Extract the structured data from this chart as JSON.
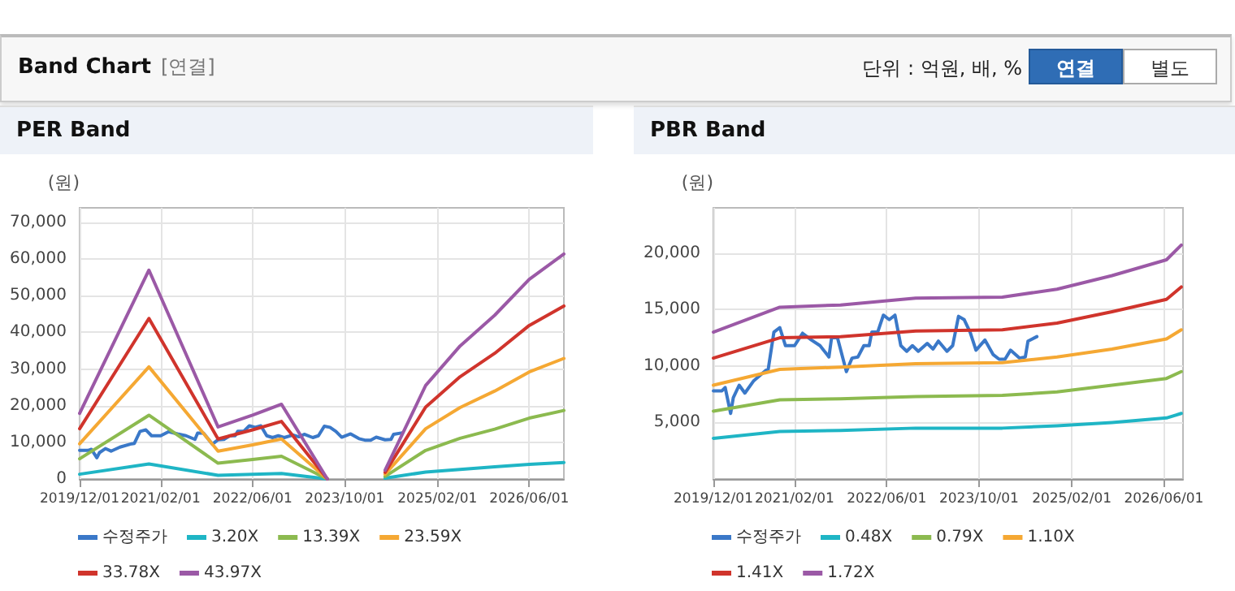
{
  "chart_data": [
    {
      "type": "other",
      "title": "Band Chart",
      "subtitle": "[연결]",
      "annotations": [
        "단위 : 억원, 배, %",
        "연결",
        "별도"
      ]
    },
    {
      "type": "line",
      "title": "PER Band",
      "ylabel": "(원)",
      "legend": "bottom",
      "grid": true,
      "marker": "none",
      "line_style": "solid",
      "xlim": [
        "2019-12-01",
        "2026-12-01"
      ],
      "ylim": [
        0,
        74000
      ],
      "yticks": [
        0,
        {
          "value": 10000,
          "label": "10,000"
        },
        {
          "value": 20000,
          "label": "20,000"
        },
        {
          "value": 30000,
          "label": "30,000"
        },
        {
          "value": 40000,
          "label": "40,000"
        },
        {
          "value": 50000,
          "label": "50,000"
        },
        {
          "value": 60000,
          "label": "60,000"
        },
        {
          "value": 70000,
          "label": "70,000"
        }
      ],
      "xticks": [
        {
          "value": "2019-12-01",
          "label": "2019/12/01"
        },
        {
          "value": "2021-02-01",
          "label": "2021/02/01"
        },
        {
          "value": "2022-06-01",
          "label": "2022/06/01"
        },
        {
          "value": "2023-10-01",
          "label": "2023/10/01"
        },
        {
          "value": "2025-02-01",
          "label": "2025/02/01"
        },
        {
          "value": "2026-06-01",
          "label": "2026/06/01"
        }
      ],
      "series": [
        {
          "name": "수정주가",
          "color": "#3a78c8",
          "x": [
            "2019-12-01",
            "2020-01-15",
            "2020-02-01",
            "2020-03-01",
            "2020-03-15",
            "2020-04-15",
            "2020-05-15",
            "2020-07-01",
            "2020-09-01",
            "2020-09-15",
            "2020-10-15",
            "2020-11-15",
            "2020-12-15",
            "2021-02-01",
            "2021-03-15",
            "2021-05-01",
            "2021-06-15",
            "2021-08-01",
            "2021-08-15",
            "2021-09-15",
            "2021-11-01",
            "2021-12-01",
            "2022-01-01",
            "2022-02-01",
            "2022-03-01",
            "2022-03-15",
            "2022-04-15",
            "2022-05-15",
            "2022-06-15",
            "2022-07-15",
            "2022-08-15",
            "2022-09-15",
            "2022-10-15",
            "2022-11-15",
            "2023-01-01",
            "2023-02-01",
            "2023-03-01",
            "2023-04-15",
            "2023-05-15",
            "2023-06-15",
            "2023-07-15",
            "2023-08-15",
            "2023-09-15",
            "2023-11-01",
            "2023-12-15",
            "2024-01-15",
            "2024-02-15",
            "2024-03-15",
            "2024-05-01",
            "2024-06-01",
            "2024-06-15",
            "2024-08-01"
          ],
          "values": [
            7800,
            7800,
            8100,
            5800,
            7200,
            8300,
            7600,
            8700,
            9600,
            9700,
            13000,
            13400,
            11800,
            11800,
            12900,
            12300,
            11800,
            10800,
            12500,
            12500,
            9500,
            10700,
            10800,
            11800,
            11800,
            13000,
            13000,
            14500,
            14100,
            14500,
            11800,
            11300,
            11800,
            11300,
            12000,
            11500,
            12200,
            11300,
            11800,
            14400,
            14100,
            13000,
            11400,
            12300,
            11000,
            10600,
            10600,
            11400,
            10700,
            10800,
            12200,
            12600
          ]
        },
        {
          "name": "3.20X",
          "color": "#1fb5c5",
          "x": [
            "2019-12-01",
            "2020-12-01",
            "2021-12-01",
            "2022-06-01",
            "2022-11-01",
            "2023-07-01",
            "2024-01-01",
            "2024-05-01",
            "2024-12-01",
            "2025-06-01",
            "2025-12-01",
            "2026-06-01",
            "2026-12-01"
          ],
          "values": [
            1300,
            4100,
            1000,
            1300,
            1500,
            0,
            null,
            200,
            1900,
            2600,
            3300,
            4000,
            4500
          ]
        },
        {
          "name": "13.39X",
          "color": "#8cba4f",
          "x": [
            "2019-12-01",
            "2020-12-01",
            "2021-12-01",
            "2022-06-01",
            "2022-11-01",
            "2023-07-01",
            "2024-01-01",
            "2024-05-01",
            "2024-12-01",
            "2025-06-01",
            "2025-12-01",
            "2026-06-01",
            "2026-12-01"
          ],
          "values": [
            5500,
            17400,
            4300,
            5300,
            6200,
            0,
            null,
            700,
            7800,
            11100,
            13600,
            16600,
            18700
          ]
        },
        {
          "name": "23.59X",
          "color": "#f5a833",
          "x": [
            "2019-12-01",
            "2020-12-01",
            "2021-12-01",
            "2022-06-01",
            "2022-11-01",
            "2023-07-01",
            "2024-01-01",
            "2024-05-01",
            "2024-12-01",
            "2025-06-01",
            "2025-12-01",
            "2026-06-01",
            "2026-12-01"
          ],
          "values": [
            9600,
            30600,
            7600,
            9300,
            10900,
            0,
            null,
            1300,
            13700,
            19500,
            24000,
            29200,
            32900
          ]
        },
        {
          "name": "33.78X",
          "color": "#d0342c",
          "x": [
            "2019-12-01",
            "2020-12-01",
            "2021-12-01",
            "2022-06-01",
            "2022-11-01",
            "2023-07-01",
            "2024-01-01",
            "2024-05-01",
            "2024-12-01",
            "2025-06-01",
            "2025-12-01",
            "2026-06-01",
            "2026-12-01"
          ],
          "values": [
            13700,
            43800,
            10900,
            13400,
            15700,
            0,
            null,
            1800,
            19600,
            27900,
            34300,
            41900,
            47200
          ]
        },
        {
          "name": "43.97X",
          "color": "#9b59a6",
          "x": [
            "2019-12-01",
            "2020-12-01",
            "2021-12-01",
            "2022-06-01",
            "2022-11-01",
            "2023-07-01",
            "2024-01-01",
            "2024-05-01",
            "2024-12-01",
            "2025-06-01",
            "2025-12-01",
            "2026-06-01",
            "2026-12-01"
          ],
          "values": [
            17900,
            57000,
            14200,
            17400,
            20400,
            0,
            null,
            2400,
            25500,
            36300,
            44700,
            54500,
            61400
          ]
        }
      ]
    },
    {
      "type": "line",
      "title": "PBR Band",
      "ylabel": "(원)",
      "legend": "bottom",
      "grid": true,
      "marker": "none",
      "line_style": "solid",
      "xlim": [
        "2019-12-01",
        "2026-09-10"
      ],
      "ylim": [
        0,
        24000
      ],
      "yticks": [
        {
          "value": 5000,
          "label": "5,000"
        },
        {
          "value": 10000,
          "label": "10,000"
        },
        {
          "value": 15000,
          "label": "15,000"
        },
        {
          "value": 20000,
          "label": "20,000"
        }
      ],
      "xticks": [
        {
          "value": "2019-12-01",
          "label": "2019/12/01"
        },
        {
          "value": "2021-02-01",
          "label": "2021/02/01"
        },
        {
          "value": "2022-06-01",
          "label": "2022/06/01"
        },
        {
          "value": "2023-10-01",
          "label": "2023/10/01"
        },
        {
          "value": "2025-02-01",
          "label": "2025/02/01"
        },
        {
          "value": "2026-06-01",
          "label": "2026/06/01"
        }
      ],
      "series": [
        {
          "name": "수정주가",
          "color": "#3a78c8",
          "x": [
            "2019-12-01",
            "2020-01-15",
            "2020-02-01",
            "2020-03-01",
            "2020-03-15",
            "2020-04-15",
            "2020-05-15",
            "2020-07-01",
            "2020-09-01",
            "2020-09-15",
            "2020-10-15",
            "2020-11-15",
            "2020-12-15",
            "2021-02-01",
            "2021-03-15",
            "2021-05-01",
            "2021-06-15",
            "2021-08-01",
            "2021-08-15",
            "2021-09-15",
            "2021-11-01",
            "2021-12-01",
            "2022-01-01",
            "2022-02-01",
            "2022-03-01",
            "2022-03-15",
            "2022-04-15",
            "2022-05-15",
            "2022-06-15",
            "2022-07-15",
            "2022-08-15",
            "2022-09-15",
            "2022-10-15",
            "2022-11-15",
            "2023-01-01",
            "2023-02-01",
            "2023-03-01",
            "2023-04-15",
            "2023-05-15",
            "2023-06-15",
            "2023-07-15",
            "2023-08-15",
            "2023-09-15",
            "2023-11-01",
            "2023-12-15",
            "2024-01-15",
            "2024-02-15",
            "2024-03-15",
            "2024-05-01",
            "2024-06-01",
            "2024-06-15",
            "2024-08-01"
          ],
          "values": [
            7800,
            7800,
            8100,
            5800,
            7200,
            8300,
            7600,
            8700,
            9600,
            9700,
            13000,
            13400,
            11800,
            11800,
            12900,
            12300,
            11800,
            10800,
            12500,
            12500,
            9500,
            10700,
            10800,
            11800,
            11800,
            13000,
            13000,
            14500,
            14100,
            14500,
            11800,
            11300,
            11800,
            11300,
            12000,
            11500,
            12200,
            11300,
            11800,
            14400,
            14100,
            13000,
            11400,
            12300,
            11000,
            10600,
            10600,
            11400,
            10700,
            10800,
            12200,
            12600
          ]
        },
        {
          "name": "0.48X",
          "color": "#1fb5c5",
          "x": [
            "2019-12-01",
            "2020-11-15",
            "2021-10-01",
            "2022-11-01",
            "2024-02-01",
            "2024-11-15",
            "2025-09-01",
            "2026-06-15",
            "2026-09-01"
          ],
          "values": [
            3600,
            4200,
            4300,
            4500,
            4500,
            4700,
            5000,
            5400,
            5800
          ]
        },
        {
          "name": "0.79X",
          "color": "#8cba4f",
          "x": [
            "2019-12-01",
            "2020-11-15",
            "2021-10-01",
            "2022-11-01",
            "2024-02-01",
            "2024-11-15",
            "2025-09-01",
            "2026-06-15",
            "2026-09-01"
          ],
          "values": [
            6000,
            7000,
            7100,
            7300,
            7400,
            7700,
            8300,
            8900,
            9500
          ]
        },
        {
          "name": "1.10X",
          "color": "#f5a833",
          "x": [
            "2019-12-01",
            "2020-11-15",
            "2021-10-01",
            "2022-11-01",
            "2024-02-01",
            "2024-11-15",
            "2025-09-01",
            "2026-06-15",
            "2026-09-01"
          ],
          "values": [
            8300,
            9700,
            9900,
            10200,
            10300,
            10800,
            11500,
            12400,
            13200
          ]
        },
        {
          "name": "1.41X",
          "color": "#d0342c",
          "x": [
            "2019-12-01",
            "2020-11-15",
            "2021-10-01",
            "2022-11-01",
            "2024-02-01",
            "2024-11-15",
            "2025-09-01",
            "2026-06-15",
            "2026-09-01"
          ],
          "values": [
            10700,
            12500,
            12600,
            13100,
            13200,
            13800,
            14800,
            15900,
            17000
          ]
        },
        {
          "name": "1.72X",
          "color": "#9b59a6",
          "x": [
            "2019-12-01",
            "2020-11-15",
            "2021-10-01",
            "2022-11-01",
            "2024-02-01",
            "2024-11-15",
            "2025-09-01",
            "2026-06-15",
            "2026-09-01"
          ],
          "values": [
            13000,
            15200,
            15400,
            16000,
            16100,
            16800,
            18000,
            19400,
            20700
          ]
        }
      ]
    }
  ]
}
